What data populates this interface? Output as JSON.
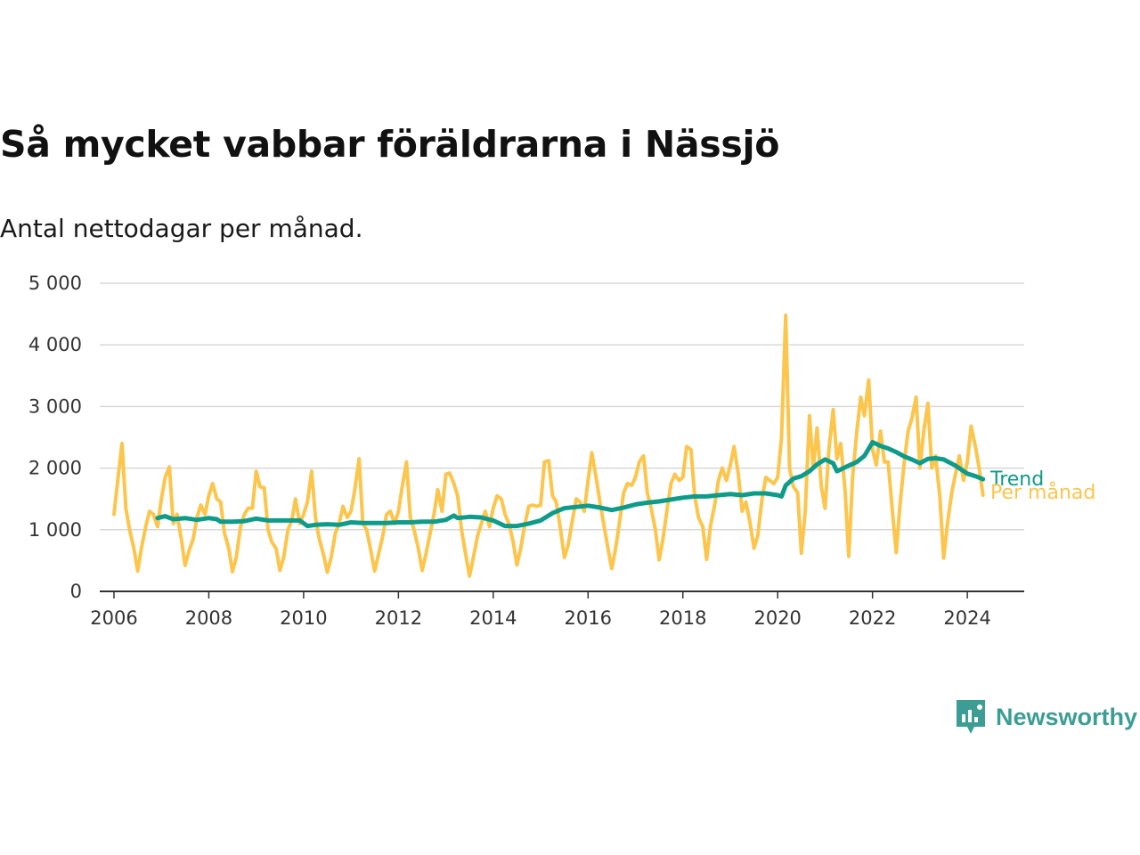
{
  "title": "Så mycket vabbar föräldrarna i Nässjö",
  "subtitle": "Antal nettodagar per månad.",
  "brand": {
    "name": "Newsworthy",
    "icon": "newsworthy-logo-icon",
    "color": "#3c9d94"
  },
  "chart_data": {
    "type": "line",
    "ylim": [
      0,
      5000
    ],
    "y_ticks": [
      0,
      1000,
      2000,
      3000,
      4000,
      5000
    ],
    "y_tick_labels": [
      "0",
      "1 000",
      "2 000",
      "3 000",
      "4 000",
      "5 000"
    ],
    "x_range": [
      2005.7,
      2025.2
    ],
    "x_ticks": [
      2006,
      2008,
      2010,
      2012,
      2014,
      2016,
      2018,
      2020,
      2022,
      2024
    ],
    "x_tick_labels": [
      "2006",
      "2008",
      "2010",
      "2012",
      "2014",
      "2016",
      "2018",
      "2020",
      "2022",
      "2024"
    ],
    "grid": true,
    "series": [
      {
        "name": "Per månad",
        "color": "#fcc54c",
        "x": [
          2006.0,
          2006.08,
          2006.17,
          2006.25,
          2006.33,
          2006.42,
          2006.5,
          2006.58,
          2006.67,
          2006.75,
          2006.83,
          2006.92,
          2007.0,
          2007.08,
          2007.17,
          2007.25,
          2007.33,
          2007.42,
          2007.5,
          2007.58,
          2007.67,
          2007.75,
          2007.83,
          2007.92,
          2008.0,
          2008.08,
          2008.17,
          2008.25,
          2008.33,
          2008.42,
          2008.5,
          2008.58,
          2008.67,
          2008.75,
          2008.83,
          2008.92,
          2009.0,
          2009.08,
          2009.17,
          2009.25,
          2009.33,
          2009.42,
          2009.5,
          2009.58,
          2009.67,
          2009.75,
          2009.83,
          2009.92,
          2010.0,
          2010.08,
          2010.17,
          2010.25,
          2010.33,
          2010.42,
          2010.5,
          2010.58,
          2010.67,
          2010.75,
          2010.83,
          2010.92,
          2011.0,
          2011.08,
          2011.17,
          2011.25,
          2011.33,
          2011.42,
          2011.5,
          2011.58,
          2011.67,
          2011.75,
          2011.83,
          2011.92,
          2012.0,
          2012.08,
          2012.17,
          2012.25,
          2012.33,
          2012.42,
          2012.5,
          2012.58,
          2012.67,
          2012.75,
          2012.83,
          2012.92,
          2013.0,
          2013.08,
          2013.17,
          2013.25,
          2013.33,
          2013.42,
          2013.5,
          2013.58,
          2013.67,
          2013.75,
          2013.83,
          2013.92,
          2014.0,
          2014.08,
          2014.17,
          2014.25,
          2014.33,
          2014.42,
          2014.5,
          2014.58,
          2014.67,
          2014.75,
          2014.83,
          2014.92,
          2015.0,
          2015.08,
          2015.17,
          2015.25,
          2015.33,
          2015.42,
          2015.5,
          2015.58,
          2015.67,
          2015.75,
          2015.83,
          2015.92,
          2016.0,
          2016.08,
          2016.17,
          2016.25,
          2016.33,
          2016.42,
          2016.5,
          2016.58,
          2016.67,
          2016.75,
          2016.83,
          2016.92,
          2017.0,
          2017.08,
          2017.17,
          2017.25,
          2017.33,
          2017.42,
          2017.5,
          2017.58,
          2017.67,
          2017.75,
          2017.83,
          2017.92,
          2018.0,
          2018.08,
          2018.17,
          2018.25,
          2018.33,
          2018.42,
          2018.5,
          2018.58,
          2018.67,
          2018.75,
          2018.83,
          2018.92,
          2019.0,
          2019.08,
          2019.17,
          2019.25,
          2019.33,
          2019.42,
          2019.5,
          2019.58,
          2019.67,
          2019.75,
          2019.83,
          2019.92,
          2020.0,
          2020.08,
          2020.17,
          2020.25,
          2020.33,
          2020.42,
          2020.5,
          2020.58,
          2020.67,
          2020.75,
          2020.83,
          2020.92,
          2021.0,
          2021.08,
          2021.17,
          2021.25,
          2021.33,
          2021.42,
          2021.5,
          2021.58,
          2021.67,
          2021.75,
          2021.83,
          2021.92,
          2022.0,
          2022.08,
          2022.17,
          2022.25,
          2022.33,
          2022.42,
          2022.5,
          2022.58,
          2022.67,
          2022.75,
          2022.83,
          2022.92,
          2023.0,
          2023.08,
          2023.17,
          2023.25,
          2023.33,
          2023.42,
          2023.5,
          2023.58,
          2023.67,
          2023.75,
          2023.83,
          2023.92,
          2024.0,
          2024.08,
          2024.17,
          2024.25,
          2024.33
        ],
        "values": [
          1250,
          1800,
          2400,
          1350,
          1000,
          700,
          330,
          700,
          1050,
          1300,
          1250,
          1050,
          1500,
          1850,
          2020,
          1100,
          1250,
          850,
          420,
          650,
          850,
          1200,
          1400,
          1250,
          1550,
          1750,
          1500,
          1450,
          950,
          700,
          320,
          550,
          1050,
          1250,
          1350,
          1350,
          1950,
          1700,
          1680,
          1000,
          800,
          700,
          340,
          550,
          1000,
          1150,
          1500,
          1100,
          1250,
          1450,
          1950,
          1200,
          850,
          600,
          310,
          550,
          950,
          1100,
          1380,
          1200,
          1300,
          1650,
          2150,
          1100,
          1000,
          650,
          330,
          600,
          900,
          1250,
          1300,
          1100,
          1300,
          1700,
          2100,
          1200,
          1000,
          700,
          340,
          600,
          950,
          1250,
          1650,
          1300,
          1900,
          1920,
          1750,
          1550,
          1000,
          600,
          250,
          550,
          900,
          1100,
          1300,
          1050,
          1350,
          1550,
          1500,
          1250,
          1100,
          800,
          430,
          700,
          1100,
          1380,
          1400,
          1380,
          1400,
          2100,
          2120,
          1550,
          1450,
          1000,
          550,
          750,
          1150,
          1500,
          1450,
          1300,
          1800,
          2250,
          1850,
          1450,
          1100,
          700,
          370,
          700,
          1150,
          1600,
          1750,
          1720,
          1850,
          2100,
          2200,
          1600,
          1350,
          1000,
          510,
          850,
          1350,
          1750,
          1900,
          1800,
          1850,
          2350,
          2300,
          1550,
          1200,
          1050,
          520,
          1050,
          1400,
          1800,
          2000,
          1800,
          2050,
          2350,
          1900,
          1300,
          1450,
          1100,
          700,
          900,
          1500,
          1850,
          1800,
          1750,
          1850,
          2500,
          4480,
          2000,
          1700,
          1600,
          620,
          1300,
          2850,
          2000,
          2650,
          1700,
          1350,
          2300,
          2950,
          2150,
          2400,
          1650,
          570,
          1850,
          2600,
          3150,
          2850,
          3430,
          2300,
          2050,
          2600,
          2100,
          2100,
          1300,
          630,
          1400,
          2100,
          2600,
          2800,
          3150,
          2000,
          2600,
          3050,
          2000,
          2200,
          1550,
          540,
          1100,
          1600,
          1900,
          2200,
          1800,
          2100,
          2680,
          2350,
          2000,
          1560
        ]
      },
      {
        "name": "Trend",
        "color": "#0e9b8a",
        "x": [
          2006.92,
          2007.08,
          2007.25,
          2007.5,
          2007.75,
          2008.0,
          2008.17,
          2008.25,
          2008.5,
          2008.75,
          2009.0,
          2009.25,
          2009.5,
          2009.75,
          2009.92,
          2010.08,
          2010.25,
          2010.5,
          2010.75,
          2011.0,
          2011.25,
          2011.5,
          2011.75,
          2012.0,
          2012.25,
          2012.5,
          2012.75,
          2013.0,
          2013.17,
          2013.25,
          2013.5,
          2013.75,
          2014.0,
          2014.25,
          2014.5,
          2014.75,
          2015.0,
          2015.25,
          2015.5,
          2015.75,
          2016.0,
          2016.25,
          2016.5,
          2016.75,
          2017.0,
          2017.25,
          2017.5,
          2017.75,
          2018.0,
          2018.25,
          2018.5,
          2018.75,
          2019.0,
          2019.25,
          2019.5,
          2019.75,
          2020.0,
          2020.08,
          2020.17,
          2020.33,
          2020.5,
          2020.67,
          2020.83,
          2021.0,
          2021.17,
          2021.25,
          2021.5,
          2021.67,
          2021.83,
          2022.0,
          2022.17,
          2022.33,
          2022.5,
          2022.67,
          2022.83,
          2023.0,
          2023.17,
          2023.33,
          2023.5,
          2023.75,
          2024.0,
          2024.17,
          2024.33
        ],
        "values": [
          1190,
          1220,
          1170,
          1190,
          1160,
          1190,
          1170,
          1130,
          1130,
          1140,
          1180,
          1150,
          1150,
          1150,
          1150,
          1060,
          1080,
          1090,
          1080,
          1120,
          1110,
          1110,
          1110,
          1120,
          1120,
          1130,
          1130,
          1160,
          1230,
          1190,
          1210,
          1200,
          1150,
          1060,
          1060,
          1100,
          1150,
          1270,
          1350,
          1370,
          1390,
          1360,
          1320,
          1360,
          1410,
          1440,
          1460,
          1490,
          1520,
          1540,
          1540,
          1560,
          1580,
          1560,
          1590,
          1590,
          1560,
          1540,
          1720,
          1830,
          1870,
          1950,
          2060,
          2140,
          2080,
          1950,
          2040,
          2100,
          2200,
          2420,
          2360,
          2320,
          2260,
          2190,
          2140,
          2080,
          2150,
          2160,
          2140,
          2040,
          1910,
          1870,
          1820
        ]
      }
    ]
  }
}
